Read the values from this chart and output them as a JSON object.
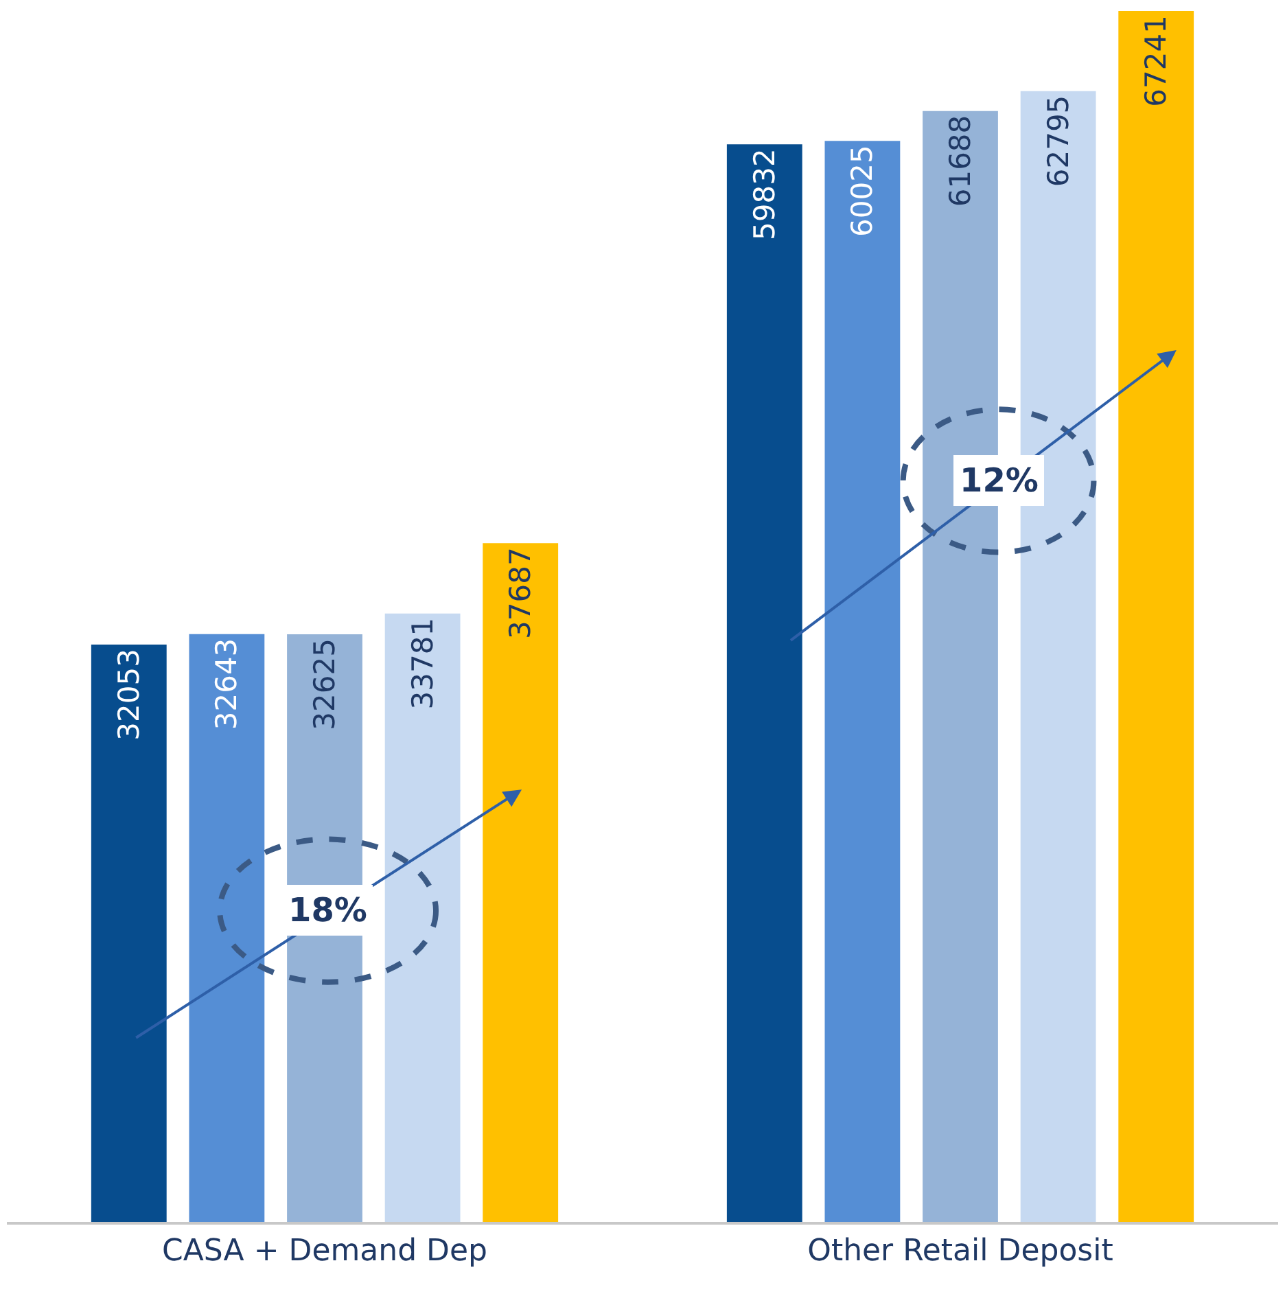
{
  "chart_data": {
    "type": "bar",
    "categories": [
      "CASA + Demand Dep",
      "Other Retail Deposit"
    ],
    "series": [
      {
        "color": "#074d8e",
        "values": [
          32053,
          59832
        ]
      },
      {
        "color": "#558ed5",
        "values": [
          32643,
          60025
        ]
      },
      {
        "color": "#95b3d7",
        "values": [
          32625,
          61688
        ]
      },
      {
        "color": "#c6d9f1",
        "values": [
          33781,
          62795
        ]
      },
      {
        "color": "#ffc000",
        "values": [
          37687,
          67241
        ]
      }
    ],
    "data_labels": true,
    "annotations": [
      "18%",
      "12%"
    ]
  }
}
